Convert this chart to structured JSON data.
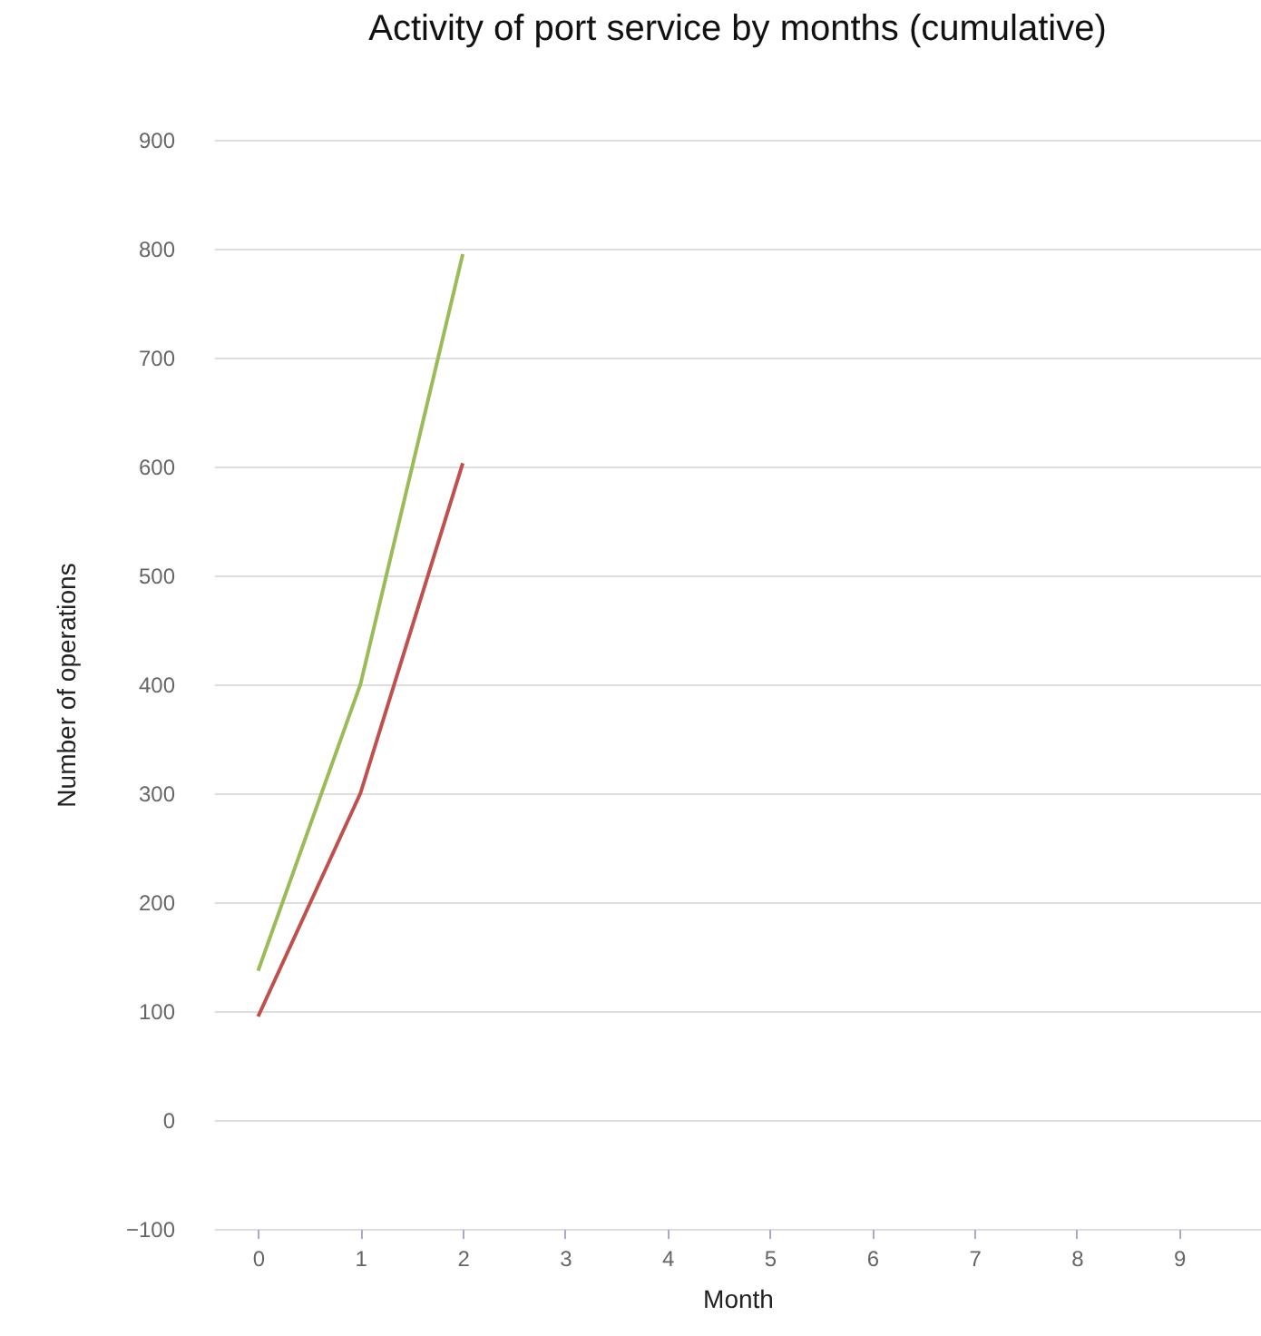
{
  "chart_data": {
    "type": "line",
    "title": "Activity of port service by months (cumulative)",
    "xlabel": "Month",
    "ylabel": "Number of operations",
    "x": [
      0,
      1,
      2
    ],
    "series": [
      {
        "color": "#9bbb59",
        "values": [
          137,
          400,
          795
        ]
      },
      {
        "color": "#c0504d",
        "values": [
          95,
          300,
          603
        ]
      }
    ],
    "xlim": [
      -0.43,
      9.8
    ],
    "xticks": [
      0,
      1,
      2,
      3,
      4,
      5,
      6,
      7,
      8,
      9
    ],
    "ylim": [
      -100,
      900
    ],
    "yticks": [
      -100,
      0,
      100,
      200,
      300,
      400,
      500,
      600,
      700,
      800,
      900
    ],
    "grid": "y",
    "marker": "none",
    "line_style": "solid"
  }
}
